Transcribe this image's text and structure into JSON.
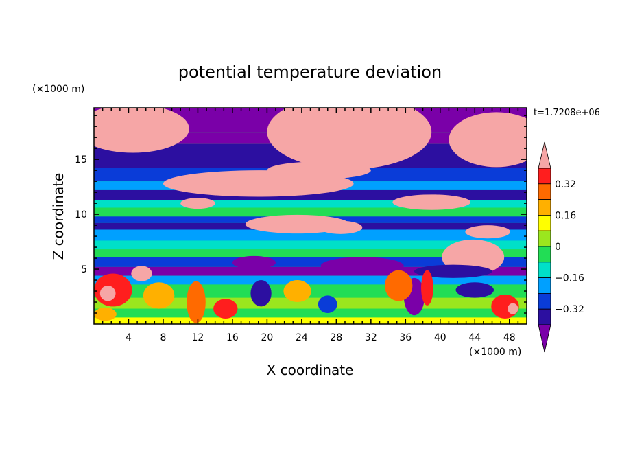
{
  "chart_data": {
    "type": "heatmap",
    "title": "potential temperature deviation",
    "time_label": "t=1.7208e+06",
    "xlabel": "X coordinate",
    "ylabel": "Z coordinate",
    "x_unit": "(×1000 m)",
    "y_unit": "(×1000 m)",
    "xlim": [
      0,
      50
    ],
    "ylim": [
      0,
      19.7
    ],
    "x_ticks": [
      4,
      8,
      12,
      16,
      20,
      24,
      28,
      32,
      36,
      40,
      44,
      48
    ],
    "y_ticks": [
      5,
      10,
      15
    ],
    "colorbar": {
      "levels": [
        -0.4,
        -0.32,
        -0.24,
        -0.16,
        -0.08,
        0,
        0.08,
        0.16,
        0.24,
        0.32,
        0.4
      ],
      "tick_labels": [
        "0.32",
        "0.16",
        "0",
        "−0.16",
        "−0.32"
      ],
      "tick_values": [
        0.32,
        0.16,
        0,
        -0.16,
        -0.32
      ],
      "colors": [
        "#7a00a8",
        "#2c0fa0",
        "#0a3cd8",
        "#00a0ff",
        "#00e0c8",
        "#22dd55",
        "#9be61e",
        "#ffff00",
        "#ffb000",
        "#ff6a00",
        "#ff1e1e",
        "#f6a6a6"
      ],
      "extend": "both"
    }
  }
}
